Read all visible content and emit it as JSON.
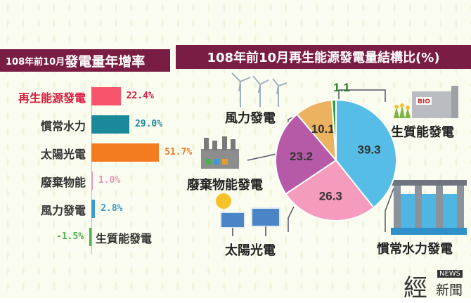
{
  "left_title": {
    "prefix": "108年前10月",
    "main": "發電量年增率"
  },
  "right_title": "108年前10月再生能源發電量結構比(%)",
  "chart_data": [
    {
      "type": "bar",
      "orientation": "horizontal",
      "title": "108年前10月發電量年增率",
      "categories": [
        "再生能源發電",
        "慣常水力",
        "太陽光電",
        "廢棄物能",
        "風力發電",
        "生質能發電"
      ],
      "values": [
        22.4,
        29.0,
        51.7,
        1.0,
        2.8,
        -1.5
      ],
      "value_labels": [
        "22.4%",
        "29.0%",
        "51.7%",
        "1.0%",
        "2.8%",
        "-1.5%"
      ],
      "colors": [
        "#f7536b",
        "#1a8a9a",
        "#f47b20",
        "#e596b8",
        "#3a9bd1",
        "#4caf50"
      ]
    },
    {
      "type": "pie",
      "title": "108年前10月再生能源發電量結構比(%)",
      "categories": [
        "慣常水力發電",
        "太陽光電",
        "廢棄物能發電",
        "風力發電",
        "生質能發電"
      ],
      "values": [
        39.3,
        26.3,
        23.2,
        10.1,
        1.1
      ],
      "labels": [
        "39.3",
        "26.3",
        "23.2",
        "10.1",
        "1.1"
      ],
      "colors": [
        "#55bde6",
        "#f59bbd",
        "#b65aa8",
        "#ebb35f",
        "#2e9b48"
      ]
    }
  ],
  "icon_labels": {
    "wind": "風力發電",
    "bio": "生質能發電",
    "waste": "廢棄物能發電",
    "solar": "太陽光電",
    "hydro": "慣常水力發電"
  },
  "bio_sign": "BIO",
  "logo": {
    "main": "經",
    "tag": "NEWS",
    "sub": "新聞"
  }
}
